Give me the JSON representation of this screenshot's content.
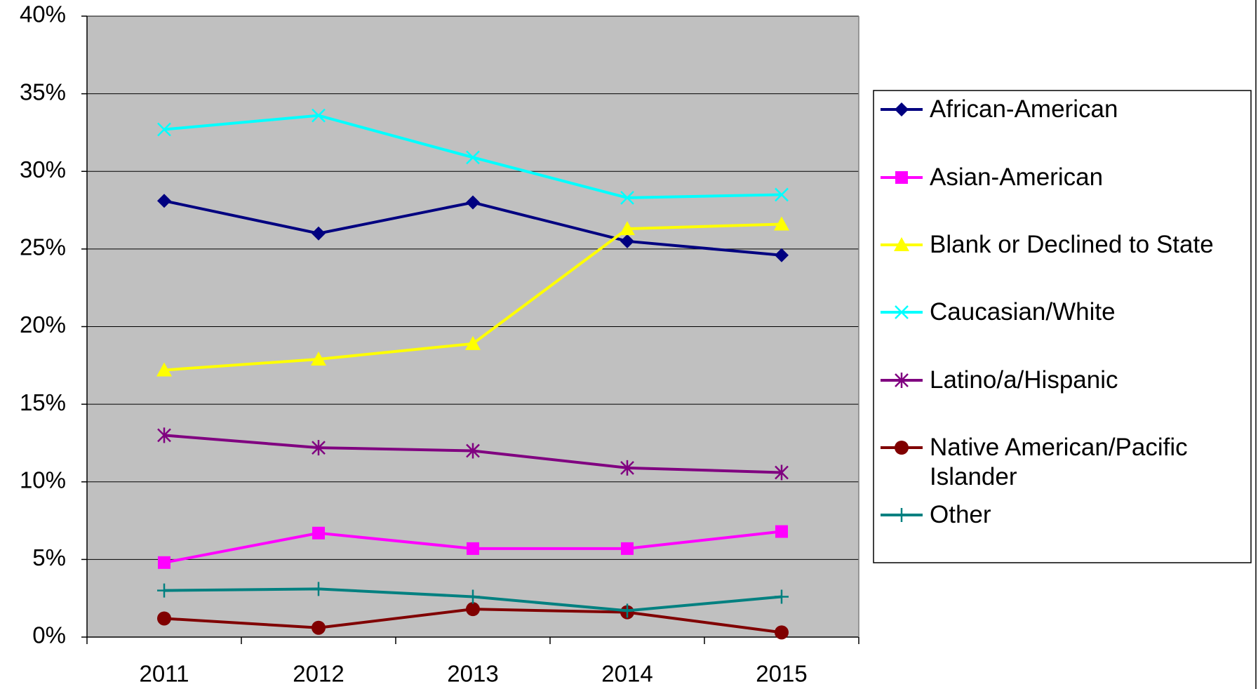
{
  "chart_data": {
    "type": "line",
    "categories": [
      "2011",
      "2012",
      "2013",
      "2014",
      "2015"
    ],
    "series": [
      {
        "name": "African-American",
        "color": "#000080",
        "marker": "diamond",
        "values": [
          28.1,
          26.0,
          28.0,
          25.5,
          24.6
        ]
      },
      {
        "name": "Asian-American",
        "color": "#ff00ff",
        "marker": "square",
        "values": [
          4.8,
          6.7,
          5.7,
          5.7,
          6.8
        ]
      },
      {
        "name": "Blank or Declined to State",
        "color": "#ffff00",
        "marker": "triangle",
        "values": [
          17.2,
          17.9,
          18.9,
          26.3,
          26.6
        ]
      },
      {
        "name": "Caucasian/White",
        "color": "#00ffff",
        "marker": "x",
        "values": [
          32.7,
          33.6,
          30.9,
          28.3,
          28.5
        ]
      },
      {
        "name": "Latino/a/Hispanic",
        "color": "#800080",
        "marker": "asterisk",
        "values": [
          13.0,
          12.2,
          12.0,
          10.9,
          10.6
        ]
      },
      {
        "name": "Native American/Pacific Islander",
        "color": "#800000",
        "marker": "circle",
        "values": [
          1.2,
          0.6,
          1.8,
          1.6,
          0.3
        ]
      },
      {
        "name": "Other",
        "color": "#008080",
        "marker": "plus",
        "values": [
          3.0,
          3.1,
          2.6,
          1.7,
          2.6
        ]
      }
    ],
    "ylim": [
      0,
      40
    ],
    "yticks": [
      {
        "value": 0,
        "label": "0%"
      },
      {
        "value": 5,
        "label": "5%"
      },
      {
        "value": 10,
        "label": "10%"
      },
      {
        "value": 15,
        "label": "15%"
      },
      {
        "value": 20,
        "label": "20%"
      },
      {
        "value": 25,
        "label": "25%"
      },
      {
        "value": 30,
        "label": "30%"
      },
      {
        "value": 35,
        "label": "35%"
      },
      {
        "value": 40,
        "label": "40%"
      }
    ],
    "grid": true,
    "legend": "right"
  }
}
